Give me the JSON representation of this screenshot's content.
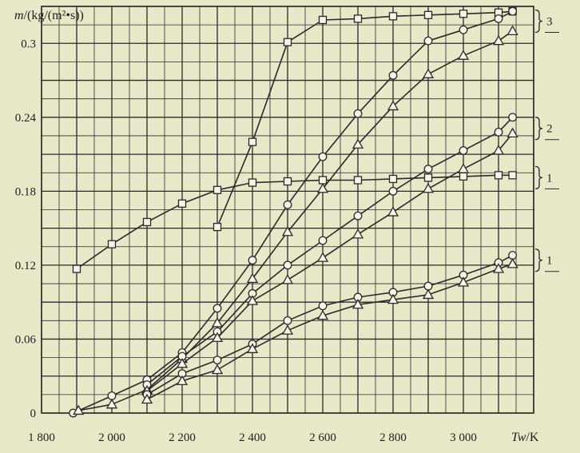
{
  "chart_data": {
    "type": "line",
    "ylabel": "m/(kg/(m²•s))",
    "xlabel": "Tw/K",
    "x_ticks": [
      1800,
      2000,
      2200,
      2400,
      2600,
      2800,
      3000
    ],
    "x_tick_labels": [
      "1 800",
      "2 000",
      "2 200",
      "2 400",
      "2 600",
      "2 800",
      "3 000"
    ],
    "y_ticks": [
      0,
      0.06,
      0.12,
      0.18,
      0.24,
      0.3
    ],
    "y_tick_labels": [
      "0",
      "0.06",
      "0.12",
      "0.18",
      "0.24",
      "0.3"
    ],
    "xlim": [
      1800,
      3200
    ],
    "ylim": [
      0,
      0.33
    ],
    "grid": true,
    "colors": {
      "background": "#e6e8c8",
      "line": "#2a2a2a",
      "grid": "#2a2a2a"
    },
    "series": [
      {
        "marker": "square",
        "x": [
          1900,
          2000,
          2100,
          2200,
          2300,
          2400,
          2500,
          2600,
          2700,
          2800,
          2900,
          3000,
          3100,
          3140
        ],
        "y": [
          0.117,
          0.137,
          0.155,
          0.17,
          0.181,
          0.187,
          0.188,
          0.189,
          0.189,
          0.19,
          0.191,
          0.192,
          0.193,
          0.193
        ]
      },
      {
        "marker": "square",
        "x": [
          2300,
          2400,
          2500,
          2600,
          2700,
          2800,
          2900,
          3000,
          3100,
          3140
        ],
        "y": [
          0.151,
          0.22,
          0.301,
          0.319,
          0.32,
          0.322,
          0.323,
          0.324,
          0.325,
          0.326
        ]
      },
      {
        "marker": "circle",
        "x": [
          1890,
          2000,
          2100,
          2200,
          2300,
          2400,
          2500,
          2600,
          2700,
          2800,
          2900,
          3000,
          3100,
          3140
        ],
        "y": [
          0.0,
          0.014,
          0.027,
          0.049,
          0.085,
          0.124,
          0.169,
          0.208,
          0.243,
          0.274,
          0.302,
          0.311,
          0.32,
          0.326
        ]
      },
      {
        "marker": "triangle",
        "x": [
          1905,
          2000,
          2100,
          2200,
          2300,
          2400,
          2500,
          2600,
          2700,
          2800,
          2900,
          3000,
          3100,
          3140
        ],
        "y": [
          0.002,
          0.007,
          0.019,
          0.044,
          0.073,
          0.109,
          0.147,
          0.182,
          0.218,
          0.249,
          0.275,
          0.29,
          0.302,
          0.31
        ]
      },
      {
        "marker": "circle",
        "x": [
          2100,
          2200,
          2300,
          2400,
          2500,
          2600,
          2700,
          2800,
          2900,
          3000,
          3100,
          3140
        ],
        "y": [
          0.023,
          0.046,
          0.066,
          0.097,
          0.12,
          0.14,
          0.16,
          0.18,
          0.198,
          0.213,
          0.228,
          0.24
        ]
      },
      {
        "marker": "triangle",
        "x": [
          2100,
          2200,
          2300,
          2400,
          2500,
          2600,
          2700,
          2800,
          2900,
          3000,
          3100,
          3140
        ],
        "y": [
          0.018,
          0.04,
          0.061,
          0.091,
          0.108,
          0.126,
          0.145,
          0.163,
          0.182,
          0.198,
          0.213,
          0.227
        ]
      },
      {
        "marker": "circle",
        "x": [
          2100,
          2200,
          2300,
          2400,
          2500,
          2600,
          2700,
          2800,
          2900,
          3000,
          3100,
          3140
        ],
        "y": [
          0.015,
          0.032,
          0.043,
          0.056,
          0.075,
          0.087,
          0.094,
          0.098,
          0.103,
          0.112,
          0.122,
          0.128
        ]
      },
      {
        "marker": "triangle",
        "x": [
          2100,
          2200,
          2300,
          2400,
          2500,
          2600,
          2700,
          2800,
          2900,
          3000,
          3100,
          3140
        ],
        "y": [
          0.011,
          0.026,
          0.035,
          0.052,
          0.067,
          0.079,
          0.088,
          0.092,
          0.096,
          0.106,
          0.117,
          0.121
        ]
      }
    ],
    "group_labels": [
      {
        "text": "3",
        "y": 0.318
      },
      {
        "text": "2",
        "y": 0.231
      },
      {
        "text": "1",
        "y": 0.191
      },
      {
        "text": "1",
        "y": 0.124
      }
    ]
  }
}
